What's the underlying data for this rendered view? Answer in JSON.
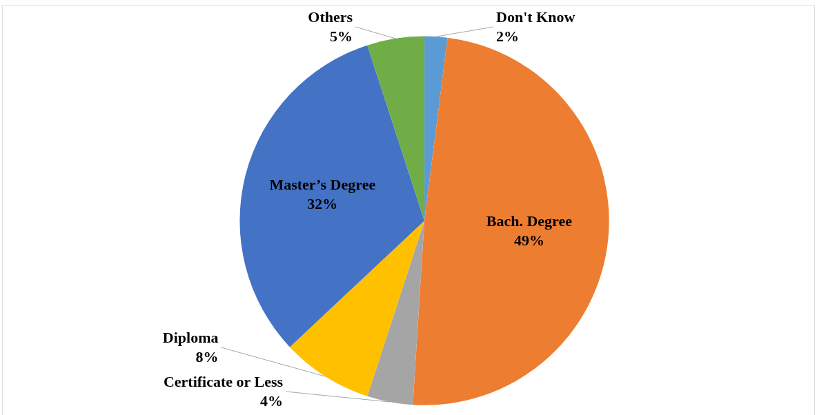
{
  "chart_data": {
    "type": "pie",
    "categories": [
      "Don't Know",
      "Bach. Degree",
      "Certificate or Less",
      "Diploma",
      "Master’s Degree",
      "Others"
    ],
    "values": [
      2,
      49,
      4,
      8,
      32,
      5
    ],
    "colors": [
      "#5b9bd5",
      "#ed7d31",
      "#a5a5a5",
      "#ffc000",
      "#4472c4",
      "#70ad47"
    ],
    "value_labels": [
      "2%",
      "49%",
      "4%",
      "8%",
      "32%",
      "5%"
    ]
  }
}
